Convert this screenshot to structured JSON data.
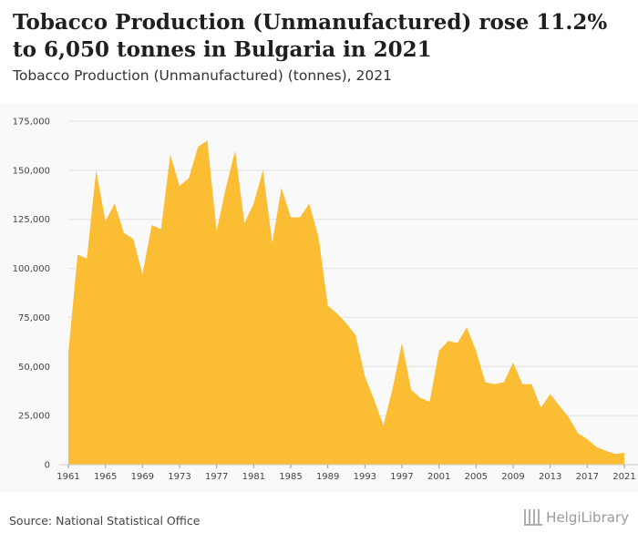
{
  "header": {
    "title": "Tobacco Production (Unmanufactured) rose 11.2% to 6,050 tonnes in Bulgaria in 2021",
    "subtitle": "Tobacco Production (Unmanufactured) (tonnes), 2021"
  },
  "footer": {
    "source": "Source: National Statistical Office",
    "brand": "HelgiLibrary"
  },
  "colors": {
    "area": "#fbbd33",
    "grid": "#e2e2e2",
    "background": "#f9f9f9"
  },
  "chart_data": {
    "type": "area",
    "title": "Tobacco Production (Unmanufactured) (tonnes), 2021",
    "xlabel": "",
    "ylabel": "",
    "ylim": [
      0,
      175000
    ],
    "y_ticks": [
      0,
      25000,
      50000,
      75000,
      100000,
      125000,
      150000,
      175000
    ],
    "y_tick_labels": [
      "0",
      "25,000",
      "50,000",
      "75,000",
      "100,000",
      "125,000",
      "150,000",
      "175,000"
    ],
    "x_ticks": [
      1961,
      1965,
      1969,
      1973,
      1977,
      1981,
      1985,
      1989,
      1993,
      1997,
      2001,
      2005,
      2009,
      2013,
      2017,
      2021
    ],
    "x_tick_labels": [
      "1961",
      "1965",
      "1969",
      "1973",
      "1977",
      "1981",
      "1985",
      "1989",
      "1993",
      "1997",
      "2001",
      "2005",
      "2009",
      "2013",
      "2017",
      "2021"
    ],
    "grid": true,
    "legend": "none",
    "x": [
      1961,
      1962,
      1963,
      1964,
      1965,
      1966,
      1967,
      1968,
      1969,
      1970,
      1971,
      1972,
      1973,
      1974,
      1975,
      1976,
      1977,
      1978,
      1979,
      1980,
      1981,
      1982,
      1983,
      1984,
      1985,
      1986,
      1987,
      1988,
      1989,
      1990,
      1991,
      1992,
      1993,
      1994,
      1995,
      1996,
      1997,
      1998,
      1999,
      2000,
      2001,
      2002,
      2003,
      2004,
      2005,
      2006,
      2007,
      2008,
      2009,
      2010,
      2011,
      2012,
      2013,
      2014,
      2015,
      2016,
      2017,
      2018,
      2019,
      2020,
      2021
    ],
    "series": [
      {
        "values": [
          57000,
          107000,
          105000,
          150000,
          124000,
          133000,
          118000,
          115000,
          97000,
          122000,
          120000,
          158000,
          142000,
          146000,
          162000,
          165000,
          119000,
          141000,
          160000,
          123000,
          133000,
          150000,
          113000,
          141000,
          126000,
          126000,
          133000,
          116000,
          81000,
          77000,
          72000,
          66000,
          45000,
          33000,
          20000,
          39000,
          62000,
          38000,
          34000,
          32000,
          58000,
          63000,
          62000,
          70000,
          58000,
          42000,
          41000,
          42000,
          52000,
          41000,
          41000,
          29000,
          36000,
          30000,
          24000,
          16000,
          13000,
          9000,
          7000,
          5440,
          6050
        ]
      }
    ]
  }
}
